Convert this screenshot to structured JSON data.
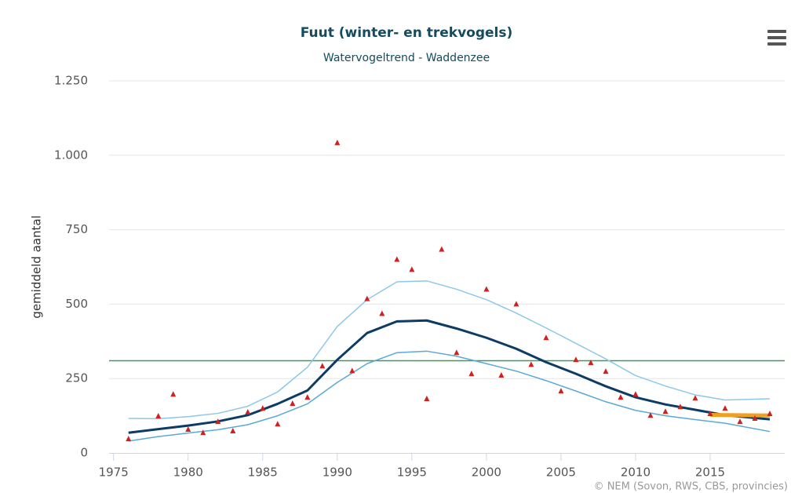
{
  "chart_data": {
    "type": "line",
    "title": "Fuut (winter- en trekvogels)",
    "subtitle": "Watervogeltrend - Waddenzee",
    "y_axis_label": "gemiddeld aantal",
    "credits": "© NEM (Sovon, RWS, CBS, provincies)",
    "xlim": [
      1974.7,
      2020
    ],
    "xticks": [
      1975,
      1980,
      1985,
      1990,
      1995,
      2000,
      2005,
      2010,
      2015
    ],
    "ylim": [
      0,
      1250
    ],
    "yticks": [
      0,
      250,
      500,
      750,
      {
        "value": 1000,
        "label": "1.000"
      },
      {
        "value": 1250,
        "label": "1.250"
      }
    ],
    "grid": true,
    "reference_line": {
      "value": 310,
      "color": "#3a9a5b"
    },
    "series": [
      {
        "kind": "line",
        "color": "#8ec8e8",
        "width": 1.5,
        "x": [
          1976,
          1978,
          1980,
          1982,
          1984,
          1986,
          1988,
          1990,
          1992,
          1994,
          1996,
          1998,
          2000,
          2002,
          2004,
          2006,
          2008,
          2010,
          2012,
          2014,
          2016,
          2019
        ],
        "values": [
          116,
          115,
          122,
          133,
          157,
          205,
          288,
          425,
          515,
          575,
          578,
          550,
          515,
          470,
          420,
          368,
          316,
          260,
          225,
          195,
          178,
          182
        ]
      },
      {
        "kind": "line",
        "color": "#5aa9d6",
        "width": 1.5,
        "x": [
          1976,
          1978,
          1980,
          1982,
          1984,
          1986,
          1988,
          1990,
          1992,
          1994,
          1996,
          1998,
          2000,
          2002,
          2004,
          2006,
          2008,
          2010,
          2012,
          2014,
          2016,
          2019
        ],
        "values": [
          40,
          55,
          67,
          78,
          95,
          125,
          165,
          237,
          300,
          337,
          342,
          325,
          300,
          275,
          243,
          208,
          172,
          143,
          125,
          112,
          100,
          72
        ]
      },
      {
        "kind": "line",
        "color": "#0c3b66",
        "width": 3,
        "x": [
          1976,
          1978,
          1980,
          1982,
          1984,
          1986,
          1988,
          1990,
          1992,
          1994,
          1996,
          1998,
          2000,
          2002,
          2004,
          2006,
          2008,
          2010,
          2012,
          2014,
          2016,
          2019
        ],
        "values": [
          68,
          80,
          92,
          106,
          127,
          165,
          210,
          313,
          403,
          442,
          445,
          418,
          387,
          350,
          305,
          266,
          224,
          187,
          163,
          145,
          127,
          113
        ]
      },
      {
        "kind": "line",
        "color": "#f0a020",
        "width": 5,
        "x": [
          2015,
          2019
        ],
        "values": [
          128,
          126
        ]
      },
      {
        "kind": "points",
        "color": "#d21f1f",
        "x": [
          1976,
          1978,
          1979,
          1980,
          1981,
          1982,
          1983,
          1984,
          1985,
          1986,
          1987,
          1988,
          1989,
          1990,
          1991,
          1992,
          1993,
          1994,
          1995,
          1996,
          1997,
          1998,
          1999,
          2000,
          2001,
          2002,
          2003,
          2004,
          2005,
          2006,
          2007,
          2008,
          2009,
          2010,
          2011,
          2012,
          2013,
          2014,
          2015,
          2016,
          2017,
          2018,
          2019
        ],
        "values": [
          47,
          124,
          197,
          79,
          68,
          105,
          74,
          137,
          150,
          97,
          166,
          187,
          292,
          1042,
          276,
          518,
          468,
          650,
          616,
          182,
          684,
          337,
          266,
          550,
          261,
          500,
          297,
          387,
          208,
          313,
          303,
          274,
          187,
          197,
          126,
          139,
          155,
          184,
          132,
          150,
          105,
          116,
          132
        ]
      }
    ]
  }
}
